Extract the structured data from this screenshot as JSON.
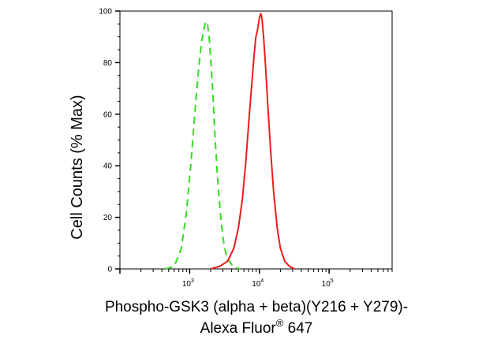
{
  "chart_data": {
    "type": "line",
    "title": "",
    "xlabel_line1": "Phospho-GSK3 (alpha + beta)(Y216 + Y279)-",
    "xlabel_line2_main": "Alexa Fluor",
    "xlabel_line2_sup": "®",
    "xlabel_line2_tail": " 647",
    "ylabel": "Cell Counts (% Max)",
    "x_scale": "log",
    "xlim": [
      100,
      800000
    ],
    "ylim": [
      0,
      100
    ],
    "y_ticks": [
      0,
      20,
      40,
      60,
      80,
      100
    ],
    "x_major_ticks": [
      {
        "value": 1000,
        "base": "10",
        "exp": "3"
      },
      {
        "value": 10000,
        "base": "10",
        "exp": "4"
      },
      {
        "value": 100000,
        "base": "10",
        "exp": "5"
      }
    ],
    "grid": false,
    "legend": "none",
    "series": [
      {
        "color": "#33dd22",
        "style": "dashed",
        "points": [
          [
            450,
            0
          ],
          [
            600,
            1
          ],
          [
            760,
            8
          ],
          [
            900,
            22
          ],
          [
            1050,
            42
          ],
          [
            1200,
            62
          ],
          [
            1350,
            78
          ],
          [
            1480,
            88
          ],
          [
            1600,
            93
          ],
          [
            1700,
            96
          ],
          [
            1800,
            95
          ],
          [
            1900,
            90
          ],
          [
            2000,
            82
          ],
          [
            2150,
            68
          ],
          [
            2300,
            52
          ],
          [
            2500,
            36
          ],
          [
            2750,
            22
          ],
          [
            3000,
            12
          ],
          [
            3300,
            6
          ],
          [
            3700,
            3
          ],
          [
            4200,
            1
          ],
          [
            5200,
            0
          ]
        ]
      },
      {
        "color": "#ee1c1c",
        "style": "solid",
        "points": [
          [
            2000,
            0
          ],
          [
            2700,
            1
          ],
          [
            3500,
            3
          ],
          [
            4300,
            8
          ],
          [
            5000,
            16
          ],
          [
            5700,
            27
          ],
          [
            6400,
            42
          ],
          [
            7100,
            58
          ],
          [
            7800,
            72
          ],
          [
            8400,
            83
          ],
          [
            8900,
            90
          ],
          [
            9300,
            92
          ],
          [
            9700,
            95
          ],
          [
            10100,
            98
          ],
          [
            10500,
            99
          ],
          [
            10900,
            97
          ],
          [
            11500,
            90
          ],
          [
            12300,
            78
          ],
          [
            13300,
            62
          ],
          [
            14500,
            46
          ],
          [
            16000,
            30
          ],
          [
            18000,
            16
          ],
          [
            20000,
            8
          ],
          [
            23000,
            3
          ],
          [
            27000,
            1
          ],
          [
            32000,
            0
          ]
        ]
      }
    ]
  }
}
